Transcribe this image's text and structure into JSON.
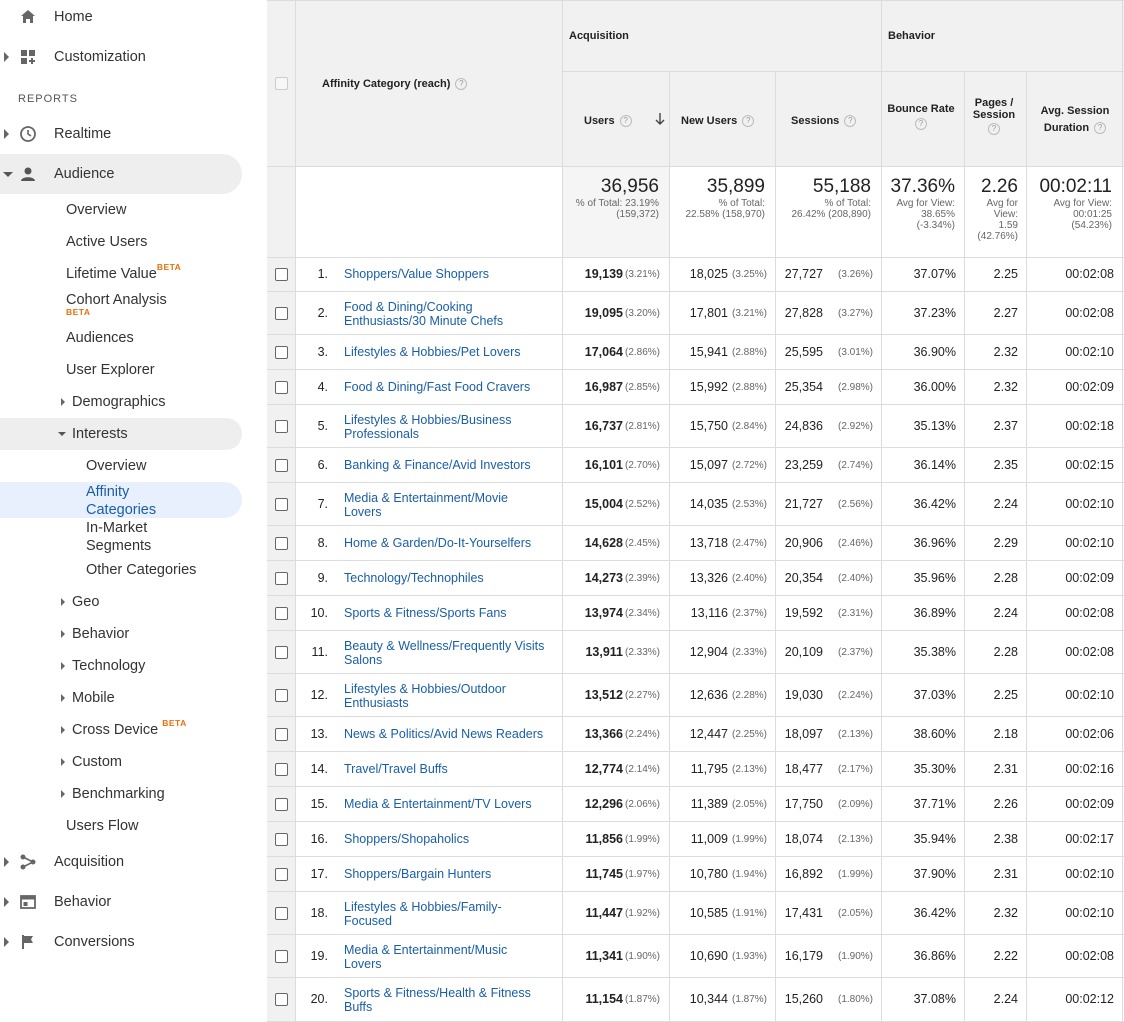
{
  "sidebar": {
    "home": "Home",
    "customization": "Customization",
    "reports_header": "REPORTS",
    "realtime": "Realtime",
    "audience": "Audience",
    "audience_items": {
      "overview": "Overview",
      "active_users": "Active Users",
      "lifetime_value": "Lifetime Value",
      "cohort_analysis": "Cohort Analysis",
      "audiences": "Audiences",
      "user_explorer": "User Explorer",
      "demographics": "Demographics",
      "interests": "Interests",
      "interests_overview": "Overview",
      "affinity_categories": "Affinity Categories",
      "in_market_segments": "In-Market Segments",
      "other_categories": "Other Categories",
      "geo": "Geo",
      "behavior": "Behavior",
      "technology": "Technology",
      "mobile": "Mobile",
      "cross_device": "Cross Device",
      "custom": "Custom",
      "benchmarking": "Benchmarking",
      "users_flow": "Users Flow"
    },
    "beta_label": "BETA",
    "acquisition": "Acquisition",
    "behavior": "Behavior",
    "conversions": "Conversions"
  },
  "table": {
    "dimension_header": "Affinity Category (reach)",
    "group_acquisition": "Acquisition",
    "group_behavior": "Behavior",
    "col_users": "Users",
    "col_new_users": "New Users",
    "col_sessions": "Sessions",
    "col_bounce_rate": "Bounce Rate",
    "col_pages_session_1": "Pages /",
    "col_pages_session_2": "Session",
    "col_avg_duration_1": "Avg. Session",
    "col_avg_duration_2": "Duration",
    "totals": {
      "users": "36,956",
      "users_sub1": "% of Total: 23.19%",
      "users_sub2": "(159,372)",
      "new_users": "35,899",
      "new_users_sub1": "% of Total:",
      "new_users_sub2": "22.58% (158,970)",
      "sessions": "55,188",
      "sessions_sub1": "% of Total:",
      "sessions_sub2": "26.42% (208,890)",
      "bounce": "37.36%",
      "bounce_sub1": "Avg for View:",
      "bounce_sub2": "38.65%",
      "bounce_sub3": "(-3.34%)",
      "pages": "2.26",
      "pages_sub1": "Avg for",
      "pages_sub2": "View:",
      "pages_sub3": "1.59",
      "pages_sub4": "(42.76%)",
      "duration": "00:02:11",
      "duration_sub1": "Avg for View:",
      "duration_sub2": "00:01:25",
      "duration_sub3": "(54.23%)"
    },
    "rows": [
      {
        "idx": "1.",
        "cat1": "Shoppers/Value Shoppers",
        "cat2": "",
        "users": "19,139",
        "users_pct": "(3.21%)",
        "new_users": "18,025",
        "new_pct": "(3.25%)",
        "sessions": "27,727",
        "sess_pct": "(3.26%)",
        "bounce": "37.07%",
        "pages": "2.25",
        "duration": "00:02:08"
      },
      {
        "idx": "2.",
        "cat1": "Food & Dining/Cooking",
        "cat2": "Enthusiasts/30 Minute Chefs",
        "users": "19,095",
        "users_pct": "(3.20%)",
        "new_users": "17,801",
        "new_pct": "(3.21%)",
        "sessions": "27,828",
        "sess_pct": "(3.27%)",
        "bounce": "37.23%",
        "pages": "2.27",
        "duration": "00:02:08"
      },
      {
        "idx": "3.",
        "cat1": "Lifestyles & Hobbies/Pet Lovers",
        "cat2": "",
        "users": "17,064",
        "users_pct": "(2.86%)",
        "new_users": "15,941",
        "new_pct": "(2.88%)",
        "sessions": "25,595",
        "sess_pct": "(3.01%)",
        "bounce": "36.90%",
        "pages": "2.32",
        "duration": "00:02:10"
      },
      {
        "idx": "4.",
        "cat1": "Food & Dining/Fast Food Cravers",
        "cat2": "",
        "users": "16,987",
        "users_pct": "(2.85%)",
        "new_users": "15,992",
        "new_pct": "(2.88%)",
        "sessions": "25,354",
        "sess_pct": "(2.98%)",
        "bounce": "36.00%",
        "pages": "2.32",
        "duration": "00:02:09"
      },
      {
        "idx": "5.",
        "cat1": "Lifestyles & Hobbies/Business",
        "cat2": "Professionals",
        "users": "16,737",
        "users_pct": "(2.81%)",
        "new_users": "15,750",
        "new_pct": "(2.84%)",
        "sessions": "24,836",
        "sess_pct": "(2.92%)",
        "bounce": "35.13%",
        "pages": "2.37",
        "duration": "00:02:18"
      },
      {
        "idx": "6.",
        "cat1": "Banking & Finance/Avid Investors",
        "cat2": "",
        "users": "16,101",
        "users_pct": "(2.70%)",
        "new_users": "15,097",
        "new_pct": "(2.72%)",
        "sessions": "23,259",
        "sess_pct": "(2.74%)",
        "bounce": "36.14%",
        "pages": "2.35",
        "duration": "00:02:15"
      },
      {
        "idx": "7.",
        "cat1": "Media & Entertainment/Movie",
        "cat2": "Lovers",
        "users": "15,004",
        "users_pct": "(2.52%)",
        "new_users": "14,035",
        "new_pct": "(2.53%)",
        "sessions": "21,727",
        "sess_pct": "(2.56%)",
        "bounce": "36.42%",
        "pages": "2.24",
        "duration": "00:02:10"
      },
      {
        "idx": "8.",
        "cat1": "Home & Garden/Do-It-Yourselfers",
        "cat2": "",
        "users": "14,628",
        "users_pct": "(2.45%)",
        "new_users": "13,718",
        "new_pct": "(2.47%)",
        "sessions": "20,906",
        "sess_pct": "(2.46%)",
        "bounce": "36.96%",
        "pages": "2.29",
        "duration": "00:02:10"
      },
      {
        "idx": "9.",
        "cat1": "Technology/Technophiles",
        "cat2": "",
        "users": "14,273",
        "users_pct": "(2.39%)",
        "new_users": "13,326",
        "new_pct": "(2.40%)",
        "sessions": "20,354",
        "sess_pct": "(2.40%)",
        "bounce": "35.96%",
        "pages": "2.28",
        "duration": "00:02:09"
      },
      {
        "idx": "10.",
        "cat1": "Sports & Fitness/Sports Fans",
        "cat2": "",
        "users": "13,974",
        "users_pct": "(2.34%)",
        "new_users": "13,116",
        "new_pct": "(2.37%)",
        "sessions": "19,592",
        "sess_pct": "(2.31%)",
        "bounce": "36.89%",
        "pages": "2.24",
        "duration": "00:02:08"
      },
      {
        "idx": "11.",
        "cat1": "Beauty & Wellness/Frequently Visits",
        "cat2": "Salons",
        "users": "13,911",
        "users_pct": "(2.33%)",
        "new_users": "12,904",
        "new_pct": "(2.33%)",
        "sessions": "20,109",
        "sess_pct": "(2.37%)",
        "bounce": "35.38%",
        "pages": "2.28",
        "duration": "00:02:08"
      },
      {
        "idx": "12.",
        "cat1": "Lifestyles & Hobbies/Outdoor",
        "cat2": "Enthusiasts",
        "users": "13,512",
        "users_pct": "(2.27%)",
        "new_users": "12,636",
        "new_pct": "(2.28%)",
        "sessions": "19,030",
        "sess_pct": "(2.24%)",
        "bounce": "37.03%",
        "pages": "2.25",
        "duration": "00:02:10"
      },
      {
        "idx": "13.",
        "cat1": "News & Politics/Avid News Readers",
        "cat2": "",
        "users": "13,366",
        "users_pct": "(2.24%)",
        "new_users": "12,447",
        "new_pct": "(2.25%)",
        "sessions": "18,097",
        "sess_pct": "(2.13%)",
        "bounce": "38.60%",
        "pages": "2.18",
        "duration": "00:02:06"
      },
      {
        "idx": "14.",
        "cat1": "Travel/Travel Buffs",
        "cat2": "",
        "users": "12,774",
        "users_pct": "(2.14%)",
        "new_users": "11,795",
        "new_pct": "(2.13%)",
        "sessions": "18,477",
        "sess_pct": "(2.17%)",
        "bounce": "35.30%",
        "pages": "2.31",
        "duration": "00:02:16"
      },
      {
        "idx": "15.",
        "cat1": "Media & Entertainment/TV Lovers",
        "cat2": "",
        "users": "12,296",
        "users_pct": "(2.06%)",
        "new_users": "11,389",
        "new_pct": "(2.05%)",
        "sessions": "17,750",
        "sess_pct": "(2.09%)",
        "bounce": "37.71%",
        "pages": "2.26",
        "duration": "00:02:09"
      },
      {
        "idx": "16.",
        "cat1": "Shoppers/Shopaholics",
        "cat2": "",
        "users": "11,856",
        "users_pct": "(1.99%)",
        "new_users": "11,009",
        "new_pct": "(1.99%)",
        "sessions": "18,074",
        "sess_pct": "(2.13%)",
        "bounce": "35.94%",
        "pages": "2.38",
        "duration": "00:02:17"
      },
      {
        "idx": "17.",
        "cat1": "Shoppers/Bargain Hunters",
        "cat2": "",
        "users": "11,745",
        "users_pct": "(1.97%)",
        "new_users": "10,780",
        "new_pct": "(1.94%)",
        "sessions": "16,892",
        "sess_pct": "(1.99%)",
        "bounce": "37.90%",
        "pages": "2.31",
        "duration": "00:02:10"
      },
      {
        "idx": "18.",
        "cat1": "Lifestyles & Hobbies/Family-",
        "cat2": "Focused",
        "users": "11,447",
        "users_pct": "(1.92%)",
        "new_users": "10,585",
        "new_pct": "(1.91%)",
        "sessions": "17,431",
        "sess_pct": "(2.05%)",
        "bounce": "36.42%",
        "pages": "2.32",
        "duration": "00:02:10"
      },
      {
        "idx": "19.",
        "cat1": "Media & Entertainment/Music",
        "cat2": "Lovers",
        "users": "11,341",
        "users_pct": "(1.90%)",
        "new_users": "10,690",
        "new_pct": "(1.93%)",
        "sessions": "16,179",
        "sess_pct": "(1.90%)",
        "bounce": "36.86%",
        "pages": "2.22",
        "duration": "00:02:08"
      },
      {
        "idx": "20.",
        "cat1": "Sports & Fitness/Health & Fitness",
        "cat2": "Buffs",
        "users": "11,154",
        "users_pct": "(1.87%)",
        "new_users": "10,344",
        "new_pct": "(1.87%)",
        "sessions": "15,260",
        "sess_pct": "(1.80%)",
        "bounce": "37.08%",
        "pages": "2.24",
        "duration": "00:02:12"
      }
    ]
  }
}
